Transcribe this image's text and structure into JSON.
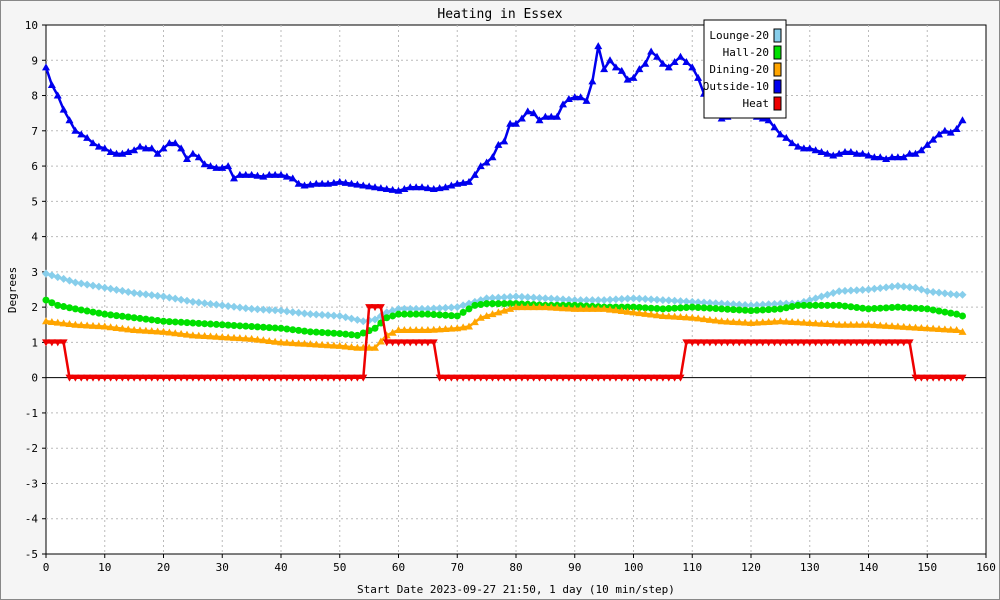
{
  "chart_data": {
    "type": "line",
    "title": "Heating in Essex",
    "xlabel": "Start Date 2023-09-27 21:50, 1 day (10 min/step)",
    "ylabel": "Degrees",
    "xlim": [
      0,
      160
    ],
    "ylim": [
      -5,
      10
    ],
    "x_ticks": [
      0,
      10,
      20,
      30,
      40,
      50,
      60,
      70,
      80,
      90,
      100,
      110,
      120,
      130,
      140,
      150,
      160
    ],
    "y_ticks": [
      -5,
      -4,
      -3,
      -2,
      -1,
      0,
      1,
      2,
      3,
      4,
      5,
      6,
      7,
      8,
      9,
      10
    ],
    "grid": true,
    "legend_position": "top-right",
    "series": [
      {
        "name": "Lounge-20",
        "color": "#87ceeb",
        "marker": "diamond",
        "points": [
          [
            0,
            2.95
          ],
          [
            5,
            2.7
          ],
          [
            10,
            2.55
          ],
          [
            15,
            2.4
          ],
          [
            20,
            2.3
          ],
          [
            25,
            2.15
          ],
          [
            30,
            2.05
          ],
          [
            35,
            1.95
          ],
          [
            40,
            1.9
          ],
          [
            45,
            1.8
          ],
          [
            50,
            1.75
          ],
          [
            54,
            1.6
          ],
          [
            56,
            1.65
          ],
          [
            58,
            1.85
          ],
          [
            60,
            1.95
          ],
          [
            65,
            1.95
          ],
          [
            70,
            2.0
          ],
          [
            73,
            2.15
          ],
          [
            75,
            2.25
          ],
          [
            80,
            2.3
          ],
          [
            85,
            2.25
          ],
          [
            90,
            2.2
          ],
          [
            95,
            2.2
          ],
          [
            100,
            2.25
          ],
          [
            105,
            2.2
          ],
          [
            110,
            2.15
          ],
          [
            115,
            2.1
          ],
          [
            120,
            2.05
          ],
          [
            125,
            2.1
          ],
          [
            128,
            2.1
          ],
          [
            130,
            2.2
          ],
          [
            133,
            2.35
          ],
          [
            135,
            2.45
          ],
          [
            140,
            2.5
          ],
          [
            145,
            2.6
          ],
          [
            148,
            2.55
          ],
          [
            150,
            2.45
          ],
          [
            155,
            2.35
          ],
          [
            156,
            2.35
          ]
        ]
      },
      {
        "name": "Hall-20",
        "color": "#00e000",
        "marker": "circle",
        "points": [
          [
            0,
            2.2
          ],
          [
            2,
            2.05
          ],
          [
            5,
            1.95
          ],
          [
            10,
            1.8
          ],
          [
            15,
            1.7
          ],
          [
            20,
            1.6
          ],
          [
            25,
            1.55
          ],
          [
            30,
            1.5
          ],
          [
            35,
            1.45
          ],
          [
            40,
            1.4
          ],
          [
            45,
            1.3
          ],
          [
            50,
            1.25
          ],
          [
            53,
            1.2
          ],
          [
            56,
            1.4
          ],
          [
            58,
            1.7
          ],
          [
            60,
            1.8
          ],
          [
            65,
            1.8
          ],
          [
            70,
            1.75
          ],
          [
            73,
            2.05
          ],
          [
            75,
            2.1
          ],
          [
            80,
            2.1
          ],
          [
            85,
            2.05
          ],
          [
            90,
            2.05
          ],
          [
            95,
            2.0
          ],
          [
            100,
            2.0
          ],
          [
            105,
            1.95
          ],
          [
            110,
            2.0
          ],
          [
            115,
            1.95
          ],
          [
            120,
            1.9
          ],
          [
            125,
            1.95
          ],
          [
            128,
            2.05
          ],
          [
            130,
            2.05
          ],
          [
            135,
            2.05
          ],
          [
            140,
            1.95
          ],
          [
            145,
            2.0
          ],
          [
            150,
            1.95
          ],
          [
            155,
            1.8
          ],
          [
            156,
            1.75
          ]
        ]
      },
      {
        "name": "Dining-20",
        "color": "#ffa500",
        "marker": "triangle",
        "points": [
          [
            0,
            1.6
          ],
          [
            5,
            1.5
          ],
          [
            10,
            1.45
          ],
          [
            15,
            1.35
          ],
          [
            20,
            1.3
          ],
          [
            25,
            1.2
          ],
          [
            30,
            1.15
          ],
          [
            35,
            1.1
          ],
          [
            40,
            1.0
          ],
          [
            45,
            0.95
          ],
          [
            50,
            0.9
          ],
          [
            53,
            0.85
          ],
          [
            56,
            0.85
          ],
          [
            58,
            1.2
          ],
          [
            60,
            1.35
          ],
          [
            65,
            1.35
          ],
          [
            70,
            1.4
          ],
          [
            72,
            1.45
          ],
          [
            74,
            1.7
          ],
          [
            77,
            1.85
          ],
          [
            80,
            2.0
          ],
          [
            85,
            2.0
          ],
          [
            90,
            1.95
          ],
          [
            95,
            1.95
          ],
          [
            100,
            1.85
          ],
          [
            105,
            1.75
          ],
          [
            110,
            1.7
          ],
          [
            115,
            1.6
          ],
          [
            120,
            1.55
          ],
          [
            125,
            1.6
          ],
          [
            130,
            1.55
          ],
          [
            135,
            1.5
          ],
          [
            140,
            1.5
          ],
          [
            145,
            1.45
          ],
          [
            150,
            1.4
          ],
          [
            155,
            1.35
          ],
          [
            156,
            1.3
          ]
        ]
      },
      {
        "name": "Outside-10",
        "color": "#0000ee",
        "marker": "triangle",
        "points": [
          [
            0,
            8.8
          ],
          [
            1,
            8.3
          ],
          [
            2,
            8.0
          ],
          [
            3,
            7.6
          ],
          [
            4,
            7.3
          ],
          [
            5,
            7.0
          ],
          [
            6,
            6.9
          ],
          [
            7,
            6.8
          ],
          [
            8,
            6.65
          ],
          [
            9,
            6.55
          ],
          [
            10,
            6.5
          ],
          [
            11,
            6.4
          ],
          [
            12,
            6.35
          ],
          [
            13,
            6.35
          ],
          [
            14,
            6.4
          ],
          [
            15,
            6.45
          ],
          [
            16,
            6.55
          ],
          [
            17,
            6.5
          ],
          [
            18,
            6.5
          ],
          [
            19,
            6.35
          ],
          [
            20,
            6.5
          ],
          [
            21,
            6.65
          ],
          [
            22,
            6.65
          ],
          [
            23,
            6.5
          ],
          [
            24,
            6.2
          ],
          [
            25,
            6.35
          ],
          [
            26,
            6.25
          ],
          [
            27,
            6.05
          ],
          [
            28,
            6.0
          ],
          [
            29,
            5.95
          ],
          [
            30,
            5.95
          ],
          [
            31,
            6.0
          ],
          [
            32,
            5.65
          ],
          [
            33,
            5.75
          ],
          [
            35,
            5.75
          ],
          [
            37,
            5.7
          ],
          [
            38,
            5.75
          ],
          [
            40,
            5.75
          ],
          [
            41,
            5.7
          ],
          [
            42,
            5.65
          ],
          [
            43,
            5.5
          ],
          [
            44,
            5.45
          ],
          [
            46,
            5.5
          ],
          [
            48,
            5.5
          ],
          [
            50,
            5.55
          ],
          [
            52,
            5.5
          ],
          [
            54,
            5.45
          ],
          [
            56,
            5.4
          ],
          [
            58,
            5.35
          ],
          [
            60,
            5.3
          ],
          [
            62,
            5.4
          ],
          [
            64,
            5.4
          ],
          [
            66,
            5.35
          ],
          [
            68,
            5.4
          ],
          [
            70,
            5.5
          ],
          [
            72,
            5.55
          ],
          [
            73,
            5.75
          ],
          [
            74,
            6.0
          ],
          [
            75,
            6.1
          ],
          [
            76,
            6.25
          ],
          [
            77,
            6.6
          ],
          [
            78,
            6.7
          ],
          [
            79,
            7.2
          ],
          [
            80,
            7.2
          ],
          [
            81,
            7.35
          ],
          [
            82,
            7.55
          ],
          [
            83,
            7.5
          ],
          [
            84,
            7.3
          ],
          [
            85,
            7.4
          ],
          [
            86,
            7.4
          ],
          [
            87,
            7.4
          ],
          [
            88,
            7.75
          ],
          [
            89,
            7.9
          ],
          [
            90,
            7.95
          ],
          [
            91,
            7.95
          ],
          [
            92,
            7.85
          ],
          [
            93,
            8.4
          ],
          [
            94,
            9.4
          ],
          [
            95,
            8.75
          ],
          [
            96,
            9.0
          ],
          [
            97,
            8.8
          ],
          [
            98,
            8.7
          ],
          [
            99,
            8.45
          ],
          [
            100,
            8.5
          ],
          [
            101,
            8.75
          ],
          [
            102,
            8.9
          ],
          [
            103,
            9.25
          ],
          [
            104,
            9.1
          ],
          [
            105,
            8.9
          ],
          [
            106,
            8.8
          ],
          [
            107,
            8.95
          ],
          [
            108,
            9.1
          ],
          [
            109,
            8.95
          ],
          [
            110,
            8.8
          ],
          [
            111,
            8.5
          ],
          [
            112,
            8.05
          ],
          [
            113,
            7.7
          ],
          [
            114,
            7.45
          ],
          [
            115,
            7.35
          ],
          [
            116,
            7.4
          ],
          [
            117,
            7.5
          ],
          [
            118,
            7.6
          ],
          [
            119,
            7.55
          ],
          [
            120,
            7.45
          ],
          [
            121,
            7.4
          ],
          [
            122,
            7.35
          ],
          [
            123,
            7.3
          ],
          [
            124,
            7.1
          ],
          [
            125,
            6.9
          ],
          [
            126,
            6.8
          ],
          [
            127,
            6.65
          ],
          [
            128,
            6.55
          ],
          [
            129,
            6.5
          ],
          [
            130,
            6.5
          ],
          [
            131,
            6.45
          ],
          [
            132,
            6.4
          ],
          [
            133,
            6.35
          ],
          [
            134,
            6.3
          ],
          [
            135,
            6.35
          ],
          [
            136,
            6.4
          ],
          [
            137,
            6.4
          ],
          [
            138,
            6.35
          ],
          [
            139,
            6.35
          ],
          [
            140,
            6.3
          ],
          [
            141,
            6.25
          ],
          [
            142,
            6.25
          ],
          [
            143,
            6.2
          ],
          [
            144,
            6.25
          ],
          [
            145,
            6.25
          ],
          [
            146,
            6.25
          ],
          [
            147,
            6.35
          ],
          [
            148,
            6.35
          ],
          [
            149,
            6.45
          ],
          [
            150,
            6.6
          ],
          [
            151,
            6.75
          ],
          [
            152,
            6.9
          ],
          [
            153,
            7.0
          ],
          [
            154,
            6.95
          ],
          [
            155,
            7.05
          ],
          [
            156,
            7.3
          ]
        ]
      },
      {
        "name": "Heat",
        "color": "#ee0000",
        "marker": "triangle-down",
        "points": [
          [
            0,
            1
          ],
          [
            1,
            1
          ],
          [
            2,
            1
          ],
          [
            3,
            1
          ],
          [
            4,
            0
          ],
          [
            20,
            0
          ],
          [
            40,
            0
          ],
          [
            54,
            0
          ],
          [
            55,
            2
          ],
          [
            56,
            2
          ],
          [
            57,
            2
          ],
          [
            58,
            1
          ],
          [
            60,
            1
          ],
          [
            62,
            1
          ],
          [
            64,
            1
          ],
          [
            66,
            1
          ],
          [
            67,
            0
          ],
          [
            80,
            0
          ],
          [
            95,
            0
          ],
          [
            108,
            0
          ],
          [
            109,
            1
          ],
          [
            120,
            1
          ],
          [
            130,
            1
          ],
          [
            140,
            1
          ],
          [
            147,
            1
          ],
          [
            148,
            0
          ],
          [
            150,
            0
          ],
          [
            156,
            0
          ]
        ]
      }
    ]
  }
}
